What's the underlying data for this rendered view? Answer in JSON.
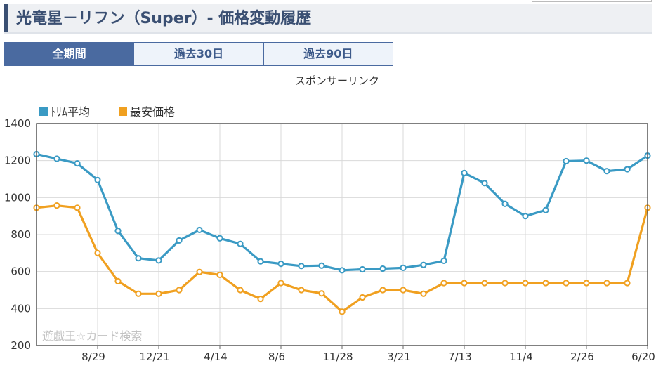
{
  "page": {
    "title": "光竜星－リフン（Super）‐ 価格変動履歴"
  },
  "tabs": [
    {
      "label": "全期間",
      "active": true
    },
    {
      "label": "過去30日",
      "active": false
    },
    {
      "label": "過去90日",
      "active": false
    }
  ],
  "sponsor_text": "スポンサーリンク",
  "watermark": "遊戯王☆カード検索",
  "colors": {
    "series1": "#3a9ac4",
    "series2": "#f0a020",
    "accent": "#4a6aa0"
  },
  "chart_data": {
    "type": "line",
    "title": "",
    "xlabel": "",
    "ylabel": "",
    "ylim": [
      200,
      1400
    ],
    "yticks": [
      200,
      400,
      600,
      800,
      1000,
      1200,
      1400
    ],
    "xtick_labels": [
      "8/29",
      "12/21",
      "4/14",
      "8/6",
      "11/28",
      "3/21",
      "7/13",
      "11/4",
      "2/26",
      "6/20"
    ],
    "xtick_indices": [
      3,
      6,
      9,
      12,
      15,
      18,
      21,
      24,
      27,
      30
    ],
    "grid": true,
    "legend": "top-left",
    "series": [
      {
        "name": "ﾄﾘﾑ平均",
        "color": "#3a9ac4",
        "values": [
          1235,
          1210,
          1185,
          1095,
          820,
          672,
          660,
          768,
          825,
          780,
          750,
          655,
          642,
          630,
          632,
          607,
          612,
          616,
          620,
          636,
          658,
          1133,
          1078,
          966,
          900,
          932,
          1197,
          1200,
          1143,
          1153,
          1227
        ]
      },
      {
        "name": "最安価格",
        "color": "#f0a020",
        "values": [
          945,
          957,
          945,
          700,
          548,
          480,
          480,
          500,
          598,
          582,
          500,
          452,
          538,
          500,
          482,
          383,
          460,
          500,
          500,
          480,
          538,
          538,
          538,
          538,
          538,
          538,
          538,
          538,
          538,
          538,
          945
        ]
      }
    ]
  }
}
